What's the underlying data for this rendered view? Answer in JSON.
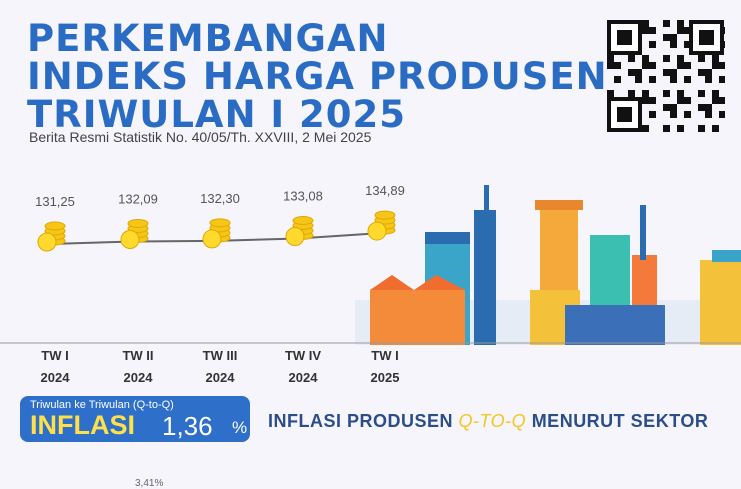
{
  "title": [
    "PERKEMBANGAN",
    "INDEKS HARGA PRODUSEN",
    "TRIWULAN I 2025"
  ],
  "subtitle": "Berita Resmi Statistik No. 40/05/Th. XXVIII, 2 Mei 2025",
  "chart_data": {
    "type": "line",
    "categories": [
      "TW I 2024",
      "TW II 2024",
      "TW III 2024",
      "TW IV 2024",
      "TW I 2025"
    ],
    "category_lines": [
      [
        "TW I",
        "2024"
      ],
      [
        "TW II",
        "2024"
      ],
      [
        "TW III",
        "2024"
      ],
      [
        "TW IV",
        "2024"
      ],
      [
        "TW I",
        "2025"
      ]
    ],
    "values": [
      131.25,
      132.09,
      132.3,
      133.08,
      134.89
    ],
    "value_labels": [
      "131,25",
      "132,09",
      "132,30",
      "133,08",
      "134,89"
    ],
    "title": "Indeks Harga Produsen"
  },
  "inflation_box": {
    "subtitle": "Triwulan ke Triwulan (Q-to-Q)",
    "label": "INFLASI",
    "value": "1,36",
    "unit": "%"
  },
  "sector_heading": {
    "pre": "INFLASI PRODUSEN ",
    "accent": "Q-TO-Q",
    "post": " MENURUT SEKTOR"
  },
  "partial_value": "3,41%",
  "colors": {
    "title": "#2a6cc3",
    "box": "#2d6fc9",
    "accent": "#ffe04a"
  }
}
